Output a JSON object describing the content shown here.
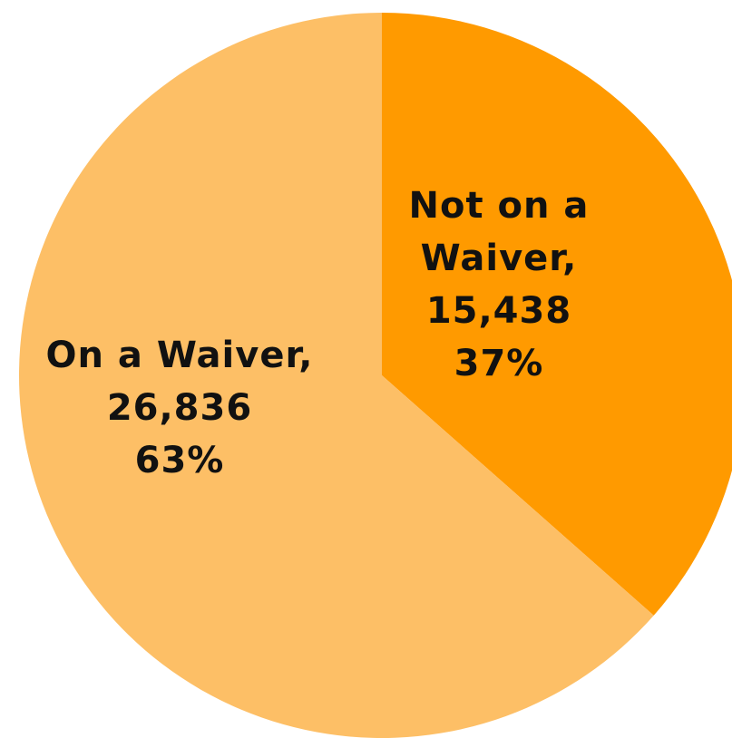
{
  "chart_data": {
    "type": "pie",
    "start_angle_deg": 0,
    "direction": "clockwise",
    "slices": [
      {
        "name": "Not on a Waiver",
        "value": 15438,
        "percent": "37%",
        "color": "#FF9A00",
        "label_lines": [
          "Not on a",
          "Waiver,",
          "15,438",
          "37%"
        ]
      },
      {
        "name": "On a Waiver",
        "value": 26836,
        "percent": "63%",
        "color": "#FDBF66",
        "label_lines": [
          "On a Waiver,",
          "26,836",
          "63%"
        ]
      }
    ]
  }
}
